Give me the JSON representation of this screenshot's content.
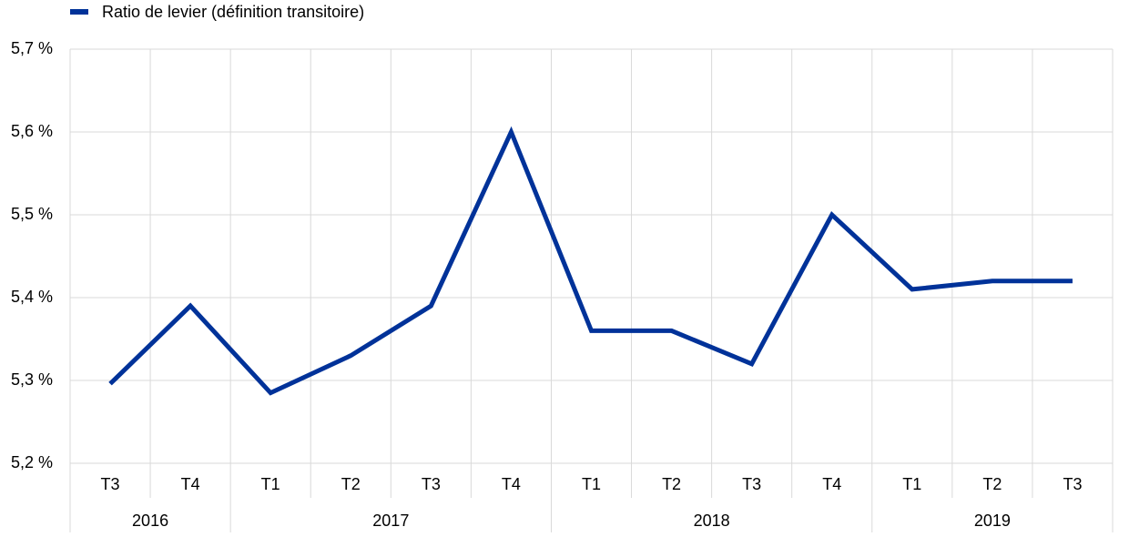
{
  "chart_data": {
    "type": "line",
    "category_groups": [
      {
        "label": "2016",
        "categories": [
          "T3",
          "T4"
        ]
      },
      {
        "label": "2017",
        "categories": [
          "T1",
          "T2",
          "T3",
          "T4"
        ]
      },
      {
        "label": "2018",
        "categories": [
          "T1",
          "T2",
          "T3",
          "T4"
        ]
      },
      {
        "label": "2019",
        "categories": [
          "T1",
          "T2",
          "T3"
        ]
      }
    ],
    "series": [
      {
        "name": "Ratio de levier (définition transitoire)",
        "color": "#003299",
        "values": [
          5.296,
          5.39,
          5.285,
          5.33,
          5.39,
          5.6,
          5.36,
          5.36,
          5.32,
          5.5,
          5.41,
          5.42,
          5.42
        ]
      }
    ],
    "ylim": [
      5.2,
      5.7
    ],
    "yticks": [
      {
        "value": 5.2,
        "label": "5,2 %"
      },
      {
        "value": 5.3,
        "label": "5,3 %"
      },
      {
        "value": 5.4,
        "label": "5,4 %"
      },
      {
        "value": 5.5,
        "label": "5,5 %"
      },
      {
        "value": 5.6,
        "label": "5,6 %"
      },
      {
        "value": 5.7,
        "label": "5,7 %"
      }
    ],
    "grid": true
  }
}
